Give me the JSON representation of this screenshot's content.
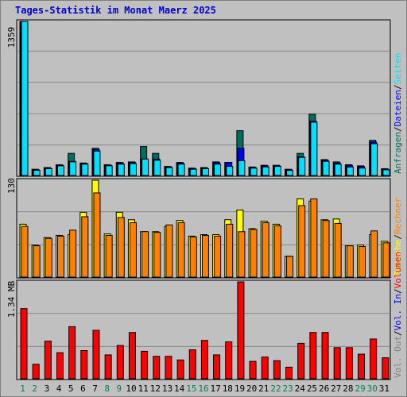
{
  "title": "Tages-Statistik im Monat Maerz 2025",
  "legend_top": [
    {
      "label": "Anfragen",
      "color": "#006E5F"
    },
    {
      "label": "Dateien",
      "color": "#0000FF"
    },
    {
      "label": "Seiten",
      "color": "#00DFFF"
    }
  ],
  "legend_mid": [
    {
      "label": "Besuche",
      "color": "#FFFF00"
    },
    {
      "label": "Rechner",
      "color": "#FF8000"
    }
  ],
  "legend_bot": [
    {
      "label": "Vol. Out",
      "color": "#7F7F7F"
    },
    {
      "label": "Vol. In",
      "color": "#0000FF"
    },
    {
      "label": "Volumen",
      "color": "#FF0000"
    }
  ],
  "separator": "/",
  "colors": {
    "panel_bg": "#C0C0C0",
    "frame": "#7F7F7F",
    "grid": "#888888",
    "weekday_label": "#000000",
    "weekend_label": "#00805C",
    "anfragen": "#006E5F",
    "dateien": "#0000FF",
    "seiten": "#00DFFF",
    "besuche": "#FFFF00",
    "rechner": "#FF8000",
    "volumen": "#FF0000"
  },
  "chart_data": [
    {
      "type": "bar",
      "ylabel": "1359",
      "ylim": [
        0,
        1359
      ],
      "categories": [
        "1",
        "2",
        "3",
        "4",
        "5",
        "6",
        "7",
        "8",
        "9",
        "10",
        "11",
        "12",
        "13",
        "14",
        "15",
        "16",
        "17",
        "18",
        "19",
        "20",
        "21",
        "22",
        "23",
        "24",
        "25",
        "26",
        "27",
        "28",
        "29",
        "30",
        "31"
      ],
      "weekend": [
        "1",
        "2",
        "8",
        "9",
        "15",
        "16",
        "22",
        "23",
        "29",
        "30"
      ],
      "series": [
        {
          "name": "Anfragen",
          "values": [
            1359,
            55,
            70,
            95,
            195,
            110,
            240,
            95,
            115,
            120,
            255,
            195,
            80,
            115,
            65,
            70,
            120,
            115,
            395,
            75,
            90,
            90,
            55,
            195,
            540,
            140,
            120,
            95,
            85,
            310,
            60
          ]
        },
        {
          "name": "Dateien",
          "values": [
            1359,
            50,
            65,
            90,
            125,
            105,
            230,
            90,
            110,
            115,
            145,
            145,
            75,
            110,
            60,
            65,
            115,
            115,
            240,
            70,
            85,
            85,
            50,
            165,
            480,
            135,
            110,
            90,
            80,
            295,
            55
          ]
        },
        {
          "name": "Seiten",
          "values": [
            1359,
            45,
            60,
            85,
            120,
            100,
            215,
            85,
            100,
            105,
            145,
            135,
            70,
            100,
            55,
            60,
            100,
            80,
            130,
            65,
            75,
            80,
            45,
            160,
            470,
            125,
            100,
            75,
            65,
            280,
            50
          ]
        }
      ]
    },
    {
      "type": "bar",
      "ylabel": "130",
      "ylim": [
        0,
        130
      ],
      "categories": [
        "1",
        "2",
        "3",
        "4",
        "5",
        "6",
        "7",
        "8",
        "9",
        "10",
        "11",
        "12",
        "13",
        "14",
        "15",
        "16",
        "17",
        "18",
        "19",
        "20",
        "21",
        "22",
        "23",
        "24",
        "25",
        "26",
        "27",
        "28",
        "29",
        "30",
        "31"
      ],
      "series": [
        {
          "name": "Besuche",
          "values": [
            71,
            43,
            53,
            56,
            57,
            87,
            130,
            58,
            87,
            77,
            61,
            61,
            68,
            76,
            55,
            57,
            57,
            77,
            90,
            65,
            75,
            71,
            28,
            105,
            102,
            77,
            78,
            42,
            43,
            57,
            48
          ]
        },
        {
          "name": "Rechner",
          "values": [
            68,
            42,
            52,
            55,
            63,
            81,
            113,
            56,
            80,
            73,
            61,
            60,
            70,
            73,
            54,
            56,
            55,
            71,
            61,
            64,
            73,
            69,
            28,
            96,
            105,
            76,
            72,
            42,
            41,
            62,
            46
          ]
        }
      ]
    },
    {
      "type": "bar",
      "ylabel": "1.34 MB",
      "ylim": [
        0,
        1.34
      ],
      "categories": [
        "1",
        "2",
        "3",
        "4",
        "5",
        "6",
        "7",
        "8",
        "9",
        "10",
        "11",
        "12",
        "13",
        "14",
        "15",
        "16",
        "17",
        "18",
        "19",
        "20",
        "21",
        "22",
        "23",
        "24",
        "25",
        "26",
        "27",
        "28",
        "29",
        "30",
        "31"
      ],
      "series": [
        {
          "name": "Volumen",
          "values": [
            0.97,
            0.2,
            0.52,
            0.36,
            0.72,
            0.39,
            0.67,
            0.33,
            0.46,
            0.64,
            0.38,
            0.31,
            0.31,
            0.26,
            0.4,
            0.53,
            0.33,
            0.51,
            1.34,
            0.24,
            0.3,
            0.25,
            0.16,
            0.49,
            0.64,
            0.64,
            0.43,
            0.43,
            0.34,
            0.55,
            0.29
          ]
        }
      ]
    }
  ]
}
